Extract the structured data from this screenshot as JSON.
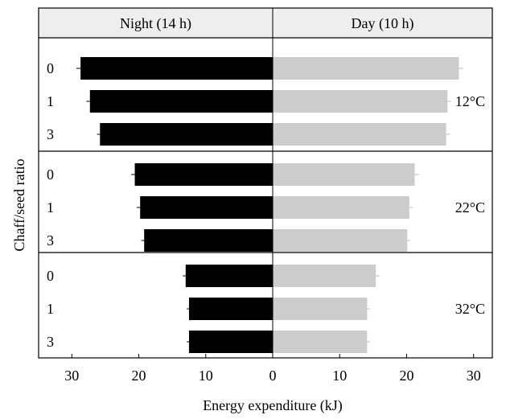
{
  "chart_data": {
    "type": "bar",
    "orientation": "horizontal-diverging",
    "panels": [
      {
        "title": "Night (14 h)",
        "color": "#000000",
        "direction": "left"
      },
      {
        "title": "Day (10 h)",
        "color": "#cccccc",
        "direction": "right"
      }
    ],
    "groups": [
      {
        "label": "12°C",
        "categories": [
          "0",
          "1",
          "3"
        ],
        "night": [
          28.7,
          27.3,
          25.8
        ],
        "day": [
          27.8,
          26.1,
          25.9
        ],
        "night_err": [
          0.4,
          0.3,
          0.2
        ],
        "day_err": [
          0.4,
          0.3,
          0.3
        ]
      },
      {
        "label": "22°C",
        "categories": [
          "0",
          "1",
          "3"
        ],
        "night": [
          20.6,
          19.8,
          19.2
        ],
        "day": [
          21.2,
          20.4,
          20.1
        ],
        "night_err": [
          0.3,
          0.3,
          0.2
        ],
        "day_err": [
          0.4,
          0.3,
          0.2
        ]
      },
      {
        "label": "32°C",
        "categories": [
          "0",
          "1",
          "3"
        ],
        "night": [
          13.0,
          12.5,
          12.5
        ],
        "day": [
          15.4,
          14.1,
          14.1
        ],
        "night_err": [
          0.2,
          0.1,
          0.1
        ],
        "day_err": [
          0.3,
          0.2,
          0.2
        ]
      }
    ],
    "xlabel": "Energy expenditure (kJ)",
    "ylabel": "Chaff/seed ratio",
    "xlim": [
      -30,
      30
    ],
    "xticks": [
      -30,
      -20,
      -10,
      0,
      10,
      20,
      30
    ],
    "xtick_labels": [
      "30",
      "20",
      "10",
      "0",
      "10",
      "20",
      "30"
    ]
  }
}
